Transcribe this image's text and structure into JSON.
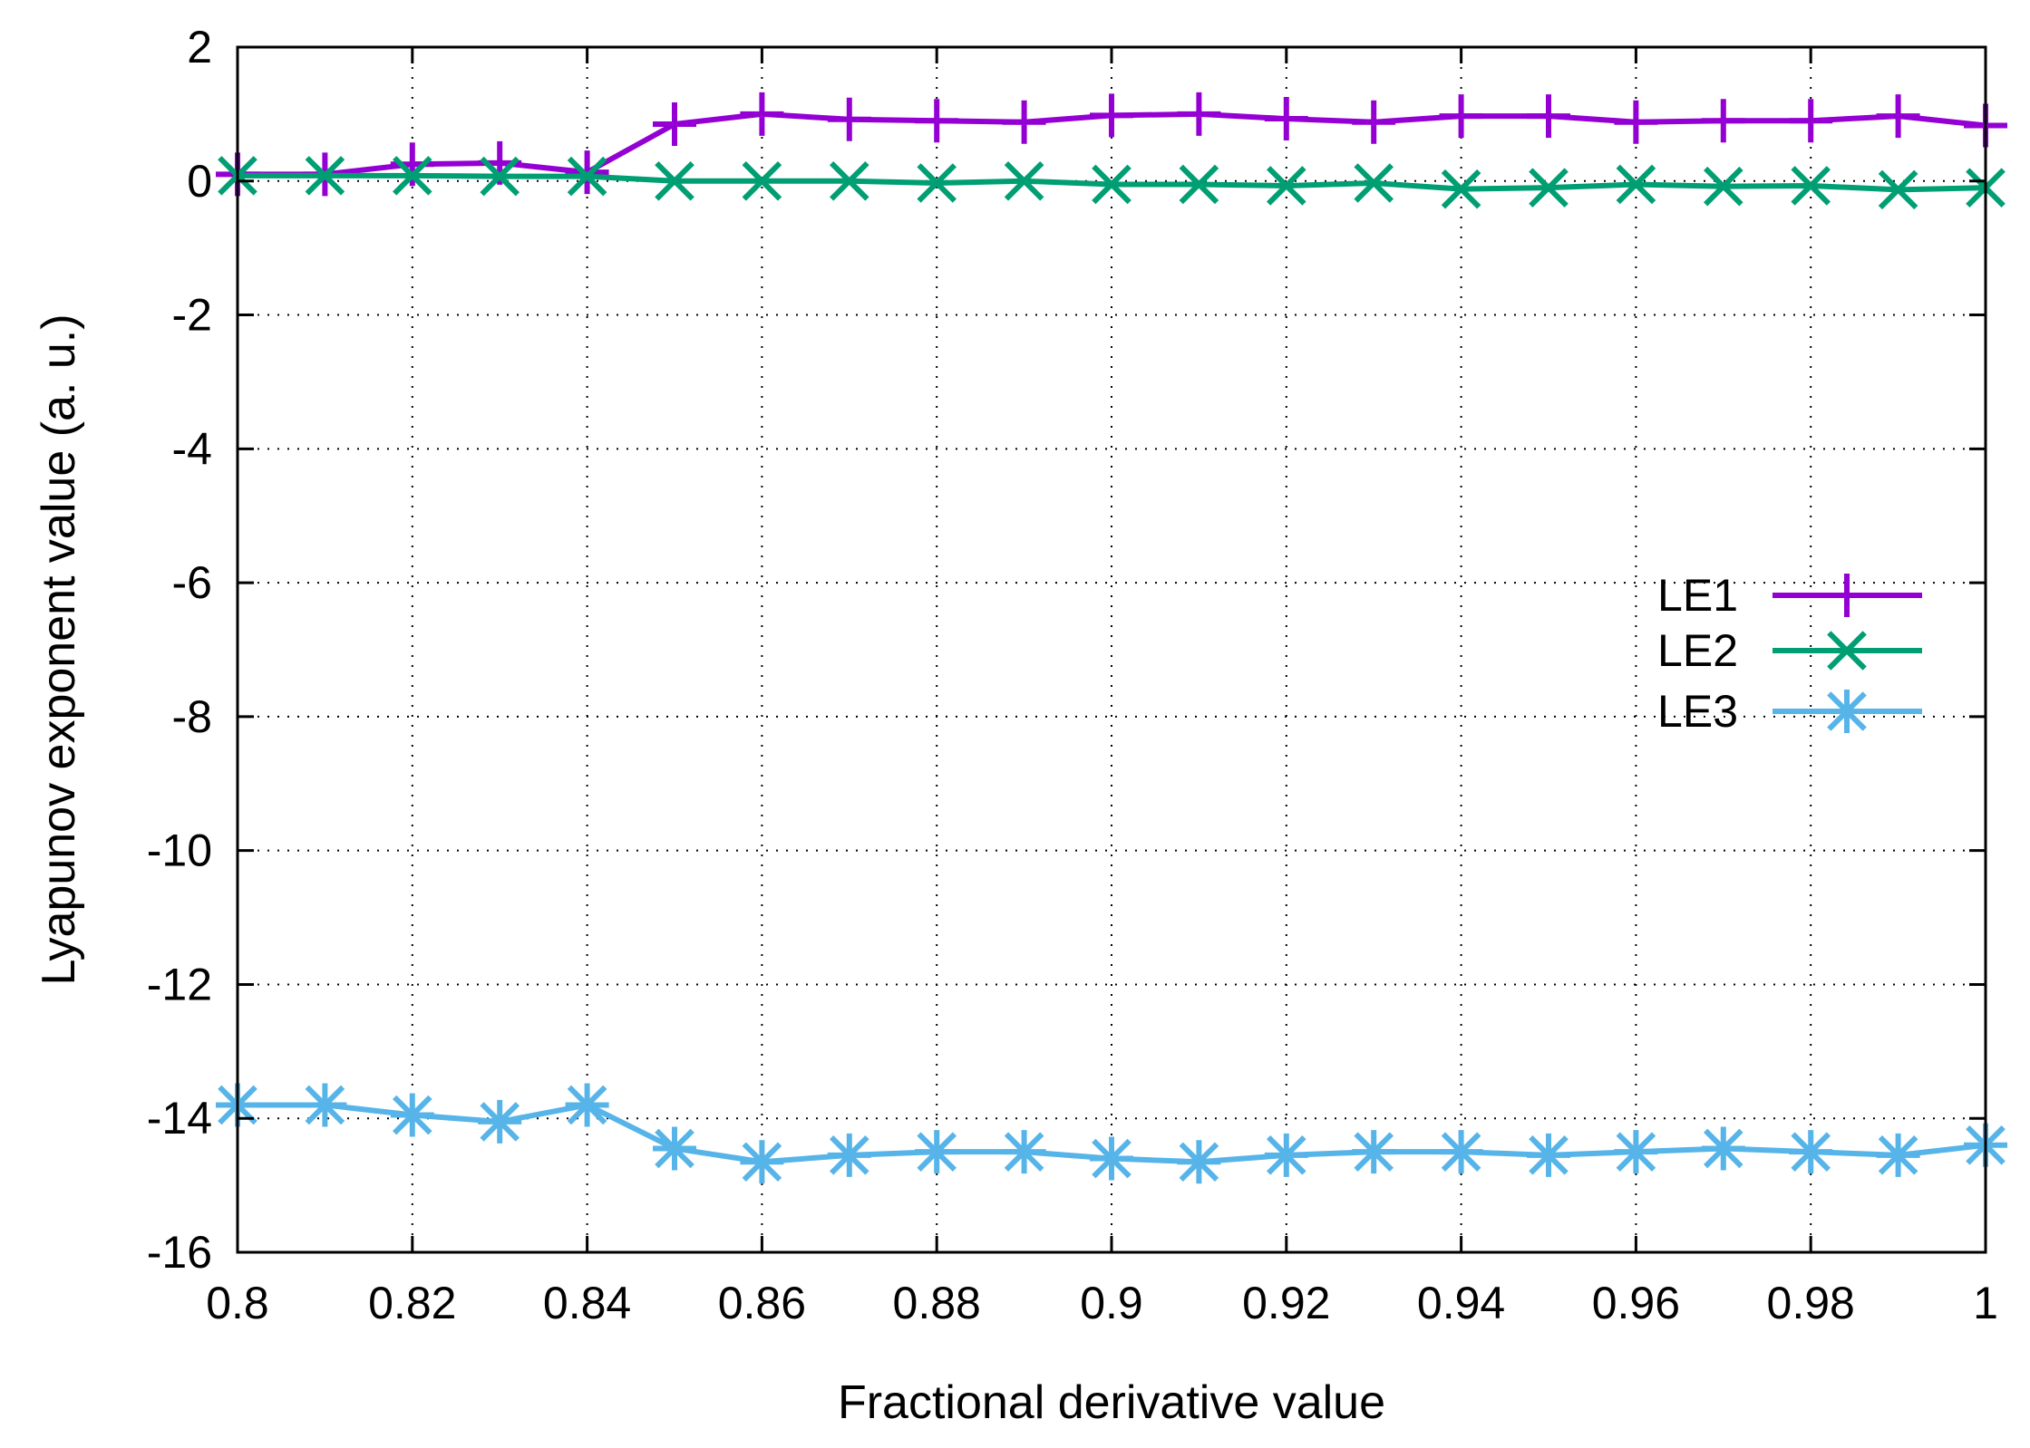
{
  "chart_data": {
    "type": "line",
    "xlabel": "Fractional derivative value",
    "ylabel": "Lyapunov exponent value (a. u.)",
    "xlim": [
      0.8,
      1.0
    ],
    "ylim": [
      -16,
      2
    ],
    "grid": true,
    "grid_style": "dotted",
    "legend_position": "right-middle",
    "x_ticks": [
      0.8,
      0.82,
      0.84,
      0.86,
      0.88,
      0.9,
      0.92,
      0.94,
      0.96,
      0.98,
      1.0
    ],
    "x_tick_labels": [
      "0.8",
      "0.82",
      "0.84",
      "0.86",
      "0.88",
      "0.9",
      "0.92",
      "0.94",
      "0.96",
      "0.98",
      "1"
    ],
    "y_ticks": [
      2,
      0,
      -2,
      -4,
      -6,
      -8,
      -10,
      -12,
      -14,
      -16
    ],
    "y_tick_labels": [
      "2",
      "0",
      "-2",
      "-4",
      "-6",
      "-8",
      "-10",
      "-12",
      "-14",
      "-16"
    ],
    "x": [
      0.8,
      0.81,
      0.82,
      0.83,
      0.84,
      0.85,
      0.86,
      0.87,
      0.88,
      0.89,
      0.9,
      0.91,
      0.92,
      0.93,
      0.94,
      0.95,
      0.96,
      0.97,
      0.98,
      0.99,
      1.0
    ],
    "series": [
      {
        "name": "LE1",
        "color": "#9400d3",
        "marker": "plus",
        "values": [
          0.1,
          0.1,
          0.25,
          0.27,
          0.13,
          0.85,
          1.0,
          0.92,
          0.9,
          0.88,
          0.98,
          1.0,
          0.93,
          0.88,
          0.97,
          0.97,
          0.88,
          0.9,
          0.9,
          0.97,
          0.83
        ]
      },
      {
        "name": "LE2",
        "color": "#009e73",
        "marker": "cross",
        "values": [
          0.08,
          0.08,
          0.08,
          0.07,
          0.07,
          0.0,
          0.0,
          0.0,
          -0.03,
          0.0,
          -0.05,
          -0.05,
          -0.07,
          -0.03,
          -0.12,
          -0.1,
          -0.05,
          -0.08,
          -0.07,
          -0.13,
          -0.1
        ]
      },
      {
        "name": "LE3",
        "color": "#56b4e9",
        "marker": "asterisk",
        "values": [
          -13.8,
          -13.8,
          -13.95,
          -14.05,
          -13.8,
          -14.45,
          -14.65,
          -14.55,
          -14.5,
          -14.5,
          -14.6,
          -14.65,
          -14.55,
          -14.5,
          -14.5,
          -14.55,
          -14.5,
          -14.45,
          -14.5,
          -14.55,
          -14.4
        ]
      }
    ]
  }
}
